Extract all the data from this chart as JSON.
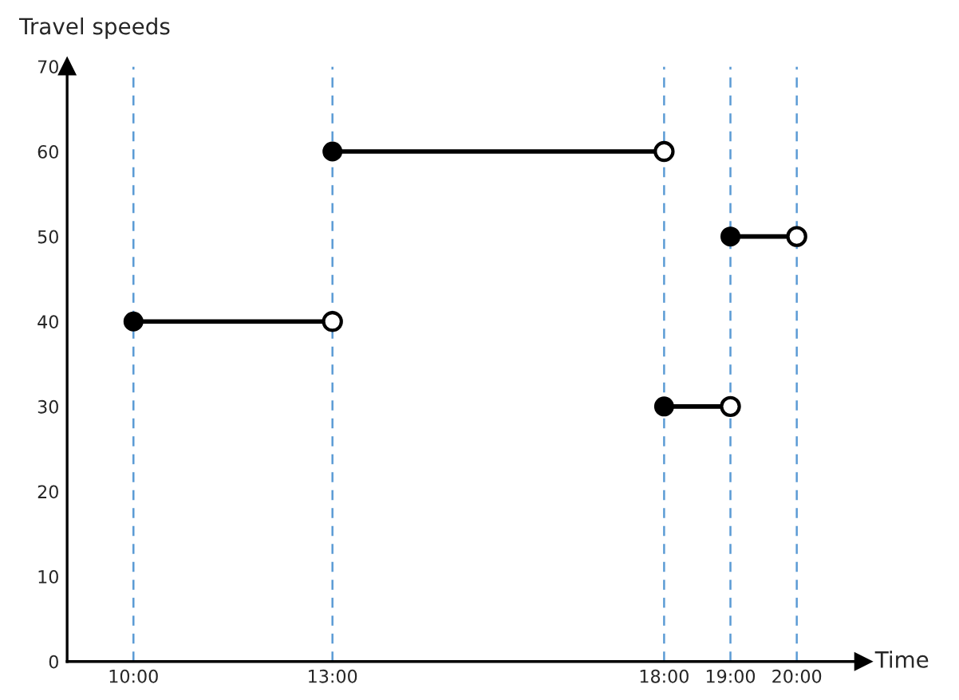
{
  "chart_data": {
    "type": "line",
    "ylabel": "Travel speeds",
    "xlabel": "Time",
    "series": [
      {
        "color": "#000000",
        "x": [
          10,
          13
        ],
        "values": [
          40,
          40
        ]
      },
      {
        "color": "#000000",
        "x": [
          13,
          18
        ],
        "values": [
          60,
          60
        ]
      },
      {
        "color": "#000000",
        "x": [
          18,
          19
        ],
        "values": [
          30,
          30
        ]
      },
      {
        "color": "#000000",
        "x": [
          19,
          20
        ],
        "values": [
          50,
          50
        ]
      }
    ],
    "marker": "circle",
    "line_style": "solid",
    "xlim": [
      9,
      21
    ],
    "ylim": [
      0,
      70
    ],
    "xticks": [
      {
        "value": 10,
        "label": "10:00"
      },
      {
        "value": 13,
        "label": "13:00"
      },
      {
        "value": 18,
        "label": "18:00"
      },
      {
        "value": 19,
        "label": "19:00"
      },
      {
        "value": 20,
        "label": "20:00"
      }
    ],
    "yticks": [
      0,
      10,
      20,
      30,
      40,
      50,
      60,
      70
    ],
    "ref_lines": [
      {
        "axis": "x",
        "value": 10,
        "color": "#5b9bd5",
        "line_style": "dashed"
      },
      {
        "axis": "x",
        "value": 13,
        "color": "#5b9bd5",
        "line_style": "dashed"
      },
      {
        "axis": "x",
        "value": 18,
        "color": "#5b9bd5",
        "line_style": "dashed"
      },
      {
        "axis": "x",
        "value": 19,
        "color": "#5b9bd5",
        "line_style": "dashed"
      },
      {
        "axis": "x",
        "value": 20,
        "color": "#5b9bd5",
        "line_style": "dashed"
      }
    ],
    "grid": false
  }
}
